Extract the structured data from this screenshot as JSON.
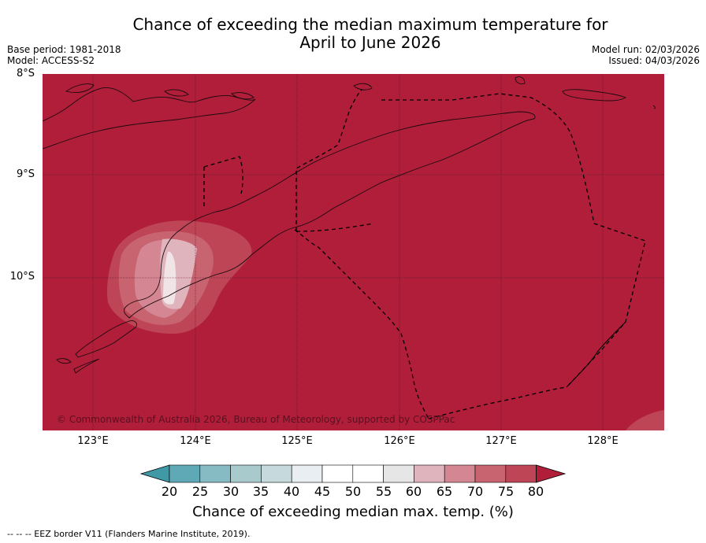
{
  "title": {
    "line1": "Chance of exceeding the median maximum temperature for",
    "line2": "April to June 2026"
  },
  "meta": {
    "base_period": "Base period: 1981-2018",
    "model": "Model: ACCESS-S2",
    "model_run": "Model run: 02/03/2026",
    "issued": "Issued: 04/03/2026"
  },
  "map": {
    "lat_labels": [
      "8°S",
      "9°S",
      "10°S"
    ],
    "lon_labels": [
      "123°E",
      "124°E",
      "125°E",
      "126°E",
      "127°E",
      "128°E"
    ],
    "copyright": "© Commonwealth of Australia 2026, Bureau of Meteorology, supported by COSPPac"
  },
  "colorbar": {
    "ticks": [
      "20",
      "25",
      "30",
      "35",
      "40",
      "45",
      "50",
      "55",
      "60",
      "65",
      "70",
      "75",
      "80"
    ],
    "colors": [
      "#3f9aa6",
      "#5fa9b6",
      "#86bbc4",
      "#a8cacd",
      "#c6d9dc",
      "#e8eef1",
      "#ffffff",
      "#ffffff",
      "#e6e6e6",
      "#e0b4bd",
      "#d48793",
      "#c86370",
      "#bd4555",
      "#b01e3a"
    ],
    "label": "Chance of exceeding median max. temp. (%)"
  },
  "legend": {
    "text": "-- -- -- EEZ border V11 (Flanders Marine Institute, 2019)."
  }
}
